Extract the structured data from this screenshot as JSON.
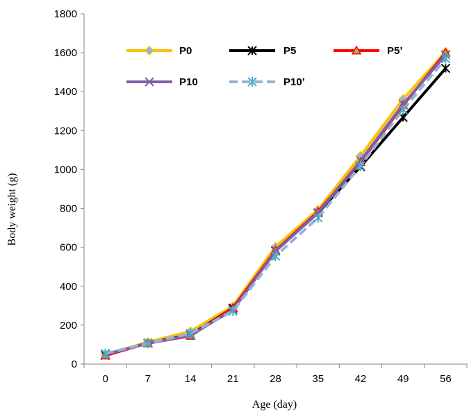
{
  "chart_data": {
    "type": "line",
    "xlabel": "Age  (day)",
    "ylabel": "Body weight (g)",
    "x": [
      0,
      7,
      14,
      21,
      28,
      35,
      42,
      49,
      56
    ],
    "ylim": [
      0,
      1800
    ],
    "yticks": [
      0,
      200,
      400,
      600,
      800,
      1000,
      1200,
      1400,
      1600,
      1800
    ],
    "grid": false,
    "legend_position": "top",
    "series": [
      {
        "name": "P0",
        "color": "#FFC000",
        "marker": "diamond",
        "dashed": false,
        "values": [
          48,
          113,
          168,
          298,
          603,
          793,
          1070,
          1362,
          1605
        ]
      },
      {
        "name": "P5",
        "color": "#000000",
        "marker": "star",
        "dashed": false,
        "values": [
          45,
          108,
          150,
          288,
          582,
          777,
          1015,
          1268,
          1520
        ]
      },
      {
        "name": "P5’",
        "color": "#FF0000",
        "marker": "triangle",
        "dashed": false,
        "values": [
          44,
          107,
          145,
          287,
          583,
          783,
          1038,
          1330,
          1600
        ]
      },
      {
        "name": "P10",
        "color": "#7F5FA8",
        "marker": "x",
        "dashed": false,
        "values": [
          50,
          106,
          148,
          278,
          580,
          778,
          1045,
          1335,
          1590
        ]
      },
      {
        "name": "P10’",
        "color": "#95B3D7",
        "marker": "asterisk",
        "dashed": true,
        "values": [
          55,
          106,
          158,
          272,
          555,
          752,
          1020,
          1308,
          1570
        ]
      }
    ]
  }
}
